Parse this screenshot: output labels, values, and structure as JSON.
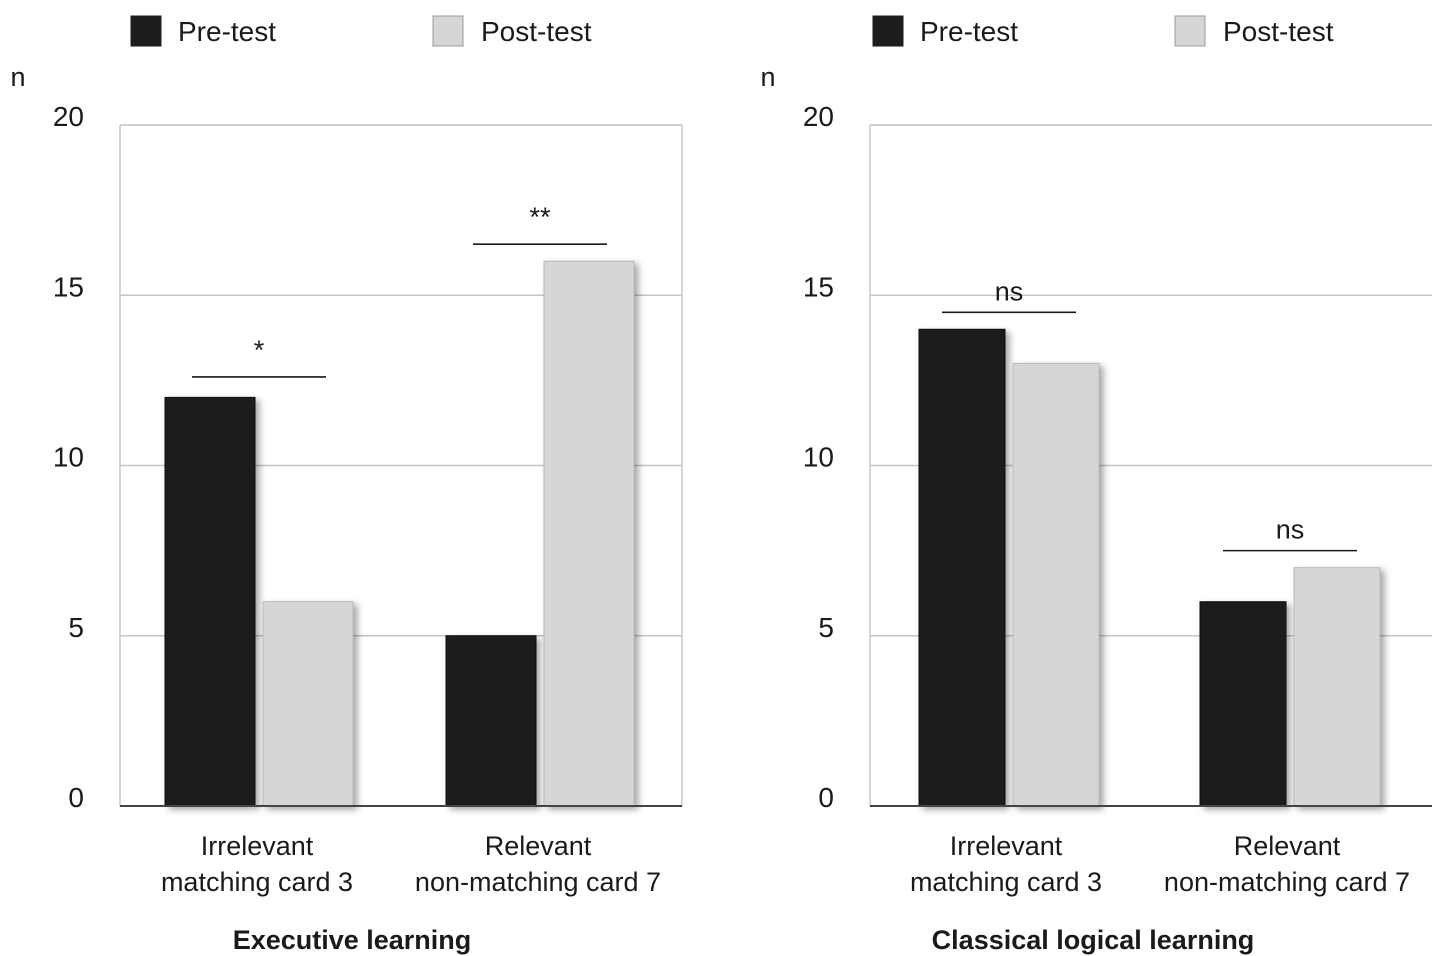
{
  "chart_data": [
    {
      "type": "bar",
      "title": "Executive learning",
      "ylabel": "n",
      "ylim": [
        0,
        20
      ],
      "yticks": [
        0,
        5,
        10,
        15,
        20
      ],
      "grid": true,
      "legend_placement": "top",
      "categories": [
        [
          "Irrelevant",
          "matching card 3"
        ],
        [
          "Relevant",
          "non-matching card 7"
        ]
      ],
      "series": [
        {
          "name": "Pre-test",
          "color": "#1e1c1d",
          "values": [
            12,
            5
          ]
        },
        {
          "name": "Post-test",
          "color": "#d5d6d8",
          "values": [
            6,
            16
          ]
        }
      ],
      "annotations": [
        {
          "category_index": 0,
          "text": "*",
          "line_at": 12.6
        },
        {
          "category_index": 1,
          "text": "**",
          "line_at": 16.5
        }
      ]
    },
    {
      "type": "bar",
      "title": "Classical logical learning",
      "ylabel": "n",
      "ylim": [
        0,
        20
      ],
      "yticks": [
        0,
        5,
        10,
        15,
        20
      ],
      "grid": true,
      "legend_placement": "top",
      "categories": [
        [
          "Irrelevant",
          "matching card 3"
        ],
        [
          "Relevant",
          "non-matching card 7"
        ]
      ],
      "series": [
        {
          "name": "Pre-test",
          "color": "#1e1c1d",
          "values": [
            14,
            6
          ]
        },
        {
          "name": "Post-test",
          "color": "#d5d6d8",
          "values": [
            13,
            7
          ]
        }
      ],
      "annotations": [
        {
          "category_index": 0,
          "text": "ns",
          "line_at": 14.5
        },
        {
          "category_index": 1,
          "text": "ns",
          "line_at": 7.5
        }
      ]
    }
  ]
}
